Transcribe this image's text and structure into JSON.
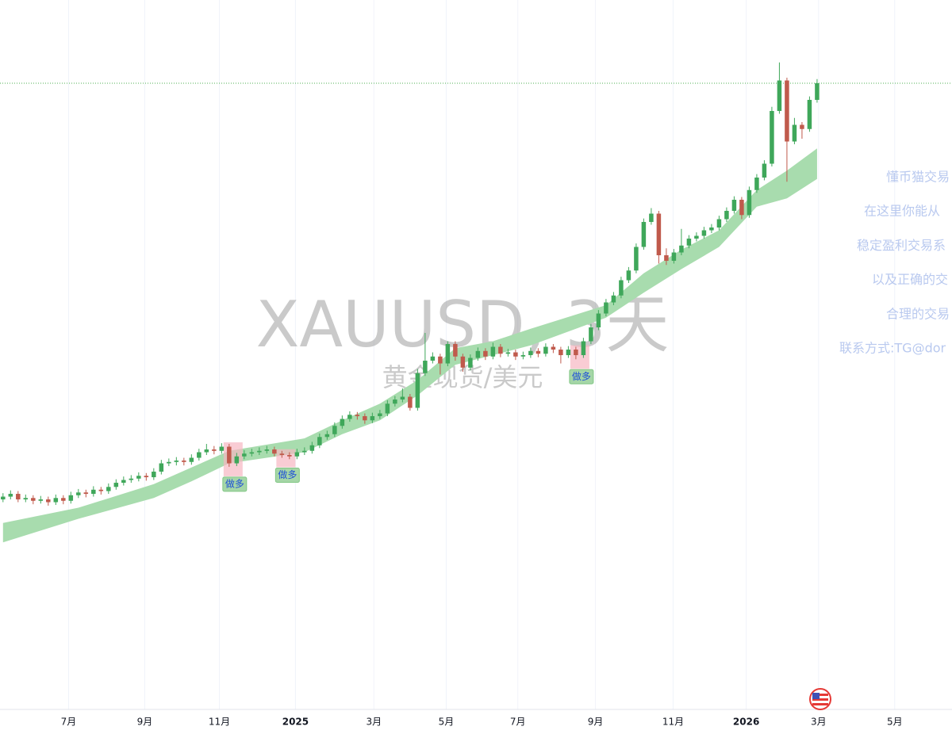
{
  "chart_data": {
    "type": "candlestick",
    "title": "XAUUSD, 3天",
    "subtitle": "黄金现货/美元",
    "up_color": "#3fa75a",
    "down_color": "#c05a4c",
    "band_color": "#a8dcae",
    "last_price_color": "#4caf50",
    "xlim": [
      -0.4,
      125.9
    ],
    "ylim": [
      786,
      5900
    ],
    "xticks": [
      {
        "value": 8.7,
        "label": "7月"
      },
      {
        "value": 18.8,
        "label": "9月"
      },
      {
        "value": 28.7,
        "label": "11月"
      },
      {
        "value": 38.8,
        "label": "2025"
      },
      {
        "value": 49.2,
        "label": "3月"
      },
      {
        "value": 58.8,
        "label": "5月"
      },
      {
        "value": 68.3,
        "label": "7月"
      },
      {
        "value": 78.6,
        "label": "9月"
      },
      {
        "value": 88.9,
        "label": "11月"
      },
      {
        "value": 98.6,
        "label": "2026"
      },
      {
        "value": 108.2,
        "label": "3月"
      },
      {
        "value": 118.3,
        "label": "5月"
      }
    ],
    "grid": true,
    "last_price": 5300,
    "candles": [
      [
        2300,
        2345,
        2280,
        2320
      ],
      [
        2320,
        2365,
        2300,
        2340
      ],
      [
        2340,
        2360,
        2280,
        2300
      ],
      [
        2300,
        2335,
        2280,
        2310
      ],
      [
        2310,
        2330,
        2265,
        2290
      ],
      [
        2290,
        2325,
        2270,
        2300
      ],
      [
        2300,
        2320,
        2255,
        2280
      ],
      [
        2280,
        2335,
        2260,
        2310
      ],
      [
        2310,
        2330,
        2265,
        2290
      ],
      [
        2290,
        2355,
        2270,
        2330
      ],
      [
        2330,
        2375,
        2310,
        2350
      ],
      [
        2350,
        2370,
        2315,
        2340
      ],
      [
        2340,
        2395,
        2320,
        2370
      ],
      [
        2370,
        2390,
        2335,
        2360
      ],
      [
        2360,
        2415,
        2340,
        2390
      ],
      [
        2390,
        2445,
        2370,
        2420
      ],
      [
        2420,
        2465,
        2400,
        2440
      ],
      [
        2440,
        2475,
        2420,
        2450
      ],
      [
        2450,
        2495,
        2430,
        2470
      ],
      [
        2470,
        2490,
        2435,
        2460
      ],
      [
        2460,
        2525,
        2440,
        2500
      ],
      [
        2500,
        2585,
        2480,
        2560
      ],
      [
        2560,
        2595,
        2540,
        2570
      ],
      [
        2570,
        2605,
        2545,
        2580
      ],
      [
        2580,
        2600,
        2545,
        2570
      ],
      [
        2570,
        2625,
        2550,
        2600
      ],
      [
        2600,
        2665,
        2580,
        2640
      ],
      [
        2640,
        2700,
        2620,
        2660
      ],
      [
        2660,
        2685,
        2625,
        2650
      ],
      [
        2650,
        2705,
        2630,
        2680
      ],
      [
        2680,
        2700,
        2535,
        2560
      ],
      [
        2560,
        2635,
        2540,
        2610
      ],
      [
        2610,
        2655,
        2590,
        2630
      ],
      [
        2630,
        2665,
        2610,
        2640
      ],
      [
        2640,
        2675,
        2620,
        2650
      ],
      [
        2650,
        2685,
        2630,
        2660
      ],
      [
        2660,
        2680,
        2610,
        2630
      ],
      [
        2630,
        2650,
        2600,
        2620
      ],
      [
        2620,
        2640,
        2590,
        2610
      ],
      [
        2610,
        2665,
        2590,
        2640
      ],
      [
        2640,
        2675,
        2620,
        2650
      ],
      [
        2650,
        2715,
        2630,
        2690
      ],
      [
        2690,
        2775,
        2670,
        2750
      ],
      [
        2750,
        2795,
        2730,
        2770
      ],
      [
        2770,
        2855,
        2750,
        2830
      ],
      [
        2830,
        2905,
        2810,
        2880
      ],
      [
        2880,
        2935,
        2860,
        2910
      ],
      [
        2910,
        2930,
        2875,
        2900
      ],
      [
        2900,
        2920,
        2845,
        2870
      ],
      [
        2870,
        2925,
        2850,
        2900
      ],
      [
        2900,
        2945,
        2880,
        2920
      ],
      [
        2920,
        3015,
        2900,
        2990
      ],
      [
        2990,
        3045,
        2970,
        3020
      ],
      [
        3020,
        3100,
        3000,
        3040
      ],
      [
        3040,
        3060,
        2940,
        2960
      ],
      [
        2960,
        3240,
        2940,
        3210
      ],
      [
        3210,
        3500,
        3190,
        3300
      ],
      [
        3300,
        3360,
        3280,
        3330
      ],
      [
        3330,
        3350,
        3200,
        3280
      ],
      [
        3280,
        3440,
        3260,
        3420
      ],
      [
        3420,
        3440,
        3300,
        3330
      ],
      [
        3330,
        3350,
        3220,
        3250
      ],
      [
        3250,
        3345,
        3230,
        3320
      ],
      [
        3320,
        3395,
        3300,
        3370
      ],
      [
        3370,
        3390,
        3305,
        3330
      ],
      [
        3330,
        3430,
        3310,
        3400
      ],
      [
        3400,
        3420,
        3325,
        3350
      ],
      [
        3350,
        3385,
        3330,
        3360
      ],
      [
        3360,
        3380,
        3305,
        3330
      ],
      [
        3330,
        3365,
        3310,
        3340
      ],
      [
        3340,
        3395,
        3320,
        3370
      ],
      [
        3370,
        3390,
        3325,
        3350
      ],
      [
        3350,
        3425,
        3330,
        3400
      ],
      [
        3400,
        3420,
        3355,
        3380
      ],
      [
        3380,
        3400,
        3280,
        3340
      ],
      [
        3340,
        3405,
        3320,
        3380
      ],
      [
        3380,
        3400,
        3310,
        3340
      ],
      [
        3340,
        3465,
        3320,
        3440
      ],
      [
        3440,
        3565,
        3420,
        3540
      ],
      [
        3540,
        3665,
        3520,
        3640
      ],
      [
        3640,
        3745,
        3620,
        3720
      ],
      [
        3720,
        3795,
        3700,
        3770
      ],
      [
        3770,
        3905,
        3750,
        3880
      ],
      [
        3880,
        3975,
        3860,
        3950
      ],
      [
        3950,
        4145,
        3930,
        4120
      ],
      [
        4120,
        4325,
        4100,
        4300
      ],
      [
        4300,
        4400,
        4280,
        4360
      ],
      [
        4360,
        4380,
        4000,
        4060
      ],
      [
        4060,
        4110,
        3990,
        4020
      ],
      [
        4020,
        4105,
        4000,
        4080
      ],
      [
        4080,
        4250,
        4060,
        4130
      ],
      [
        4130,
        4205,
        4110,
        4180
      ],
      [
        4180,
        4225,
        4160,
        4200
      ],
      [
        4200,
        4265,
        4180,
        4240
      ],
      [
        4240,
        4285,
        4220,
        4260
      ],
      [
        4260,
        4345,
        4240,
        4320
      ],
      [
        4320,
        4405,
        4300,
        4380
      ],
      [
        4380,
        4485,
        4360,
        4460
      ],
      [
        4460,
        4480,
        4320,
        4350
      ],
      [
        4350,
        4555,
        4330,
        4530
      ],
      [
        4530,
        4645,
        4510,
        4620
      ],
      [
        4620,
        4745,
        4600,
        4720
      ],
      [
        4720,
        5130,
        4700,
        5100
      ],
      [
        5100,
        5450,
        5080,
        5320
      ],
      [
        5320,
        5340,
        4590,
        4880
      ],
      [
        4880,
        5050,
        4860,
        5000
      ],
      [
        5000,
        5020,
        4900,
        4970
      ],
      [
        4970,
        5205,
        4950,
        5180
      ],
      [
        5180,
        5330,
        5160,
        5300
      ]
    ],
    "band": {
      "x": [
        0,
        10,
        20,
        25,
        30,
        40,
        45,
        50,
        55,
        60,
        65,
        70,
        80,
        85,
        90,
        95,
        100,
        104,
        108
      ],
      "upper": [
        2130,
        2240,
        2410,
        2530,
        2650,
        2740,
        2870,
        2990,
        3160,
        3390,
        3440,
        3530,
        3700,
        3930,
        4100,
        4240,
        4530,
        4670,
        4830
      ],
      "lower": [
        1990,
        2160,
        2310,
        2430,
        2560,
        2640,
        2770,
        2870,
        3050,
        3270,
        3340,
        3410,
        3610,
        3790,
        3960,
        4120,
        4410,
        4470,
        4610
      ]
    },
    "signals": [
      {
        "index": 30,
        "label": "做多"
      },
      {
        "index": 37,
        "label": "做多"
      },
      {
        "index": 76,
        "label": "做多"
      }
    ],
    "promo_lines": [
      "懂币猫交易",
      "在这里你能从",
      "稳定盈利交易系",
      "以及正确的交",
      "合理的交易",
      "联系方式:TG@dor"
    ]
  }
}
